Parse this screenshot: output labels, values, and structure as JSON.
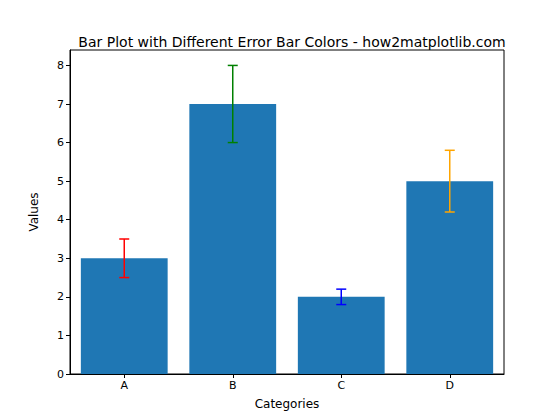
{
  "chart_data": {
    "type": "bar",
    "title": "Bar Plot with Different Error Bar Colors - how2matplotlib.com",
    "x_label": "Categories",
    "y_label": "Values",
    "categories": [
      "A",
      "B",
      "C",
      "D"
    ],
    "values": [
      3,
      7,
      2,
      5
    ],
    "color": "#1f77b4",
    "error_bars": {
      "values": [
        0.5,
        1,
        0.2,
        0.8
      ],
      "colors": [
        "red",
        "green",
        "blue",
        "orange"
      ]
    },
    "ylim": [
      0,
      8.4
    ],
    "yticks": [
      0,
      1,
      2,
      3,
      4,
      5,
      6,
      7,
      8
    ],
    "grid": false
  }
}
